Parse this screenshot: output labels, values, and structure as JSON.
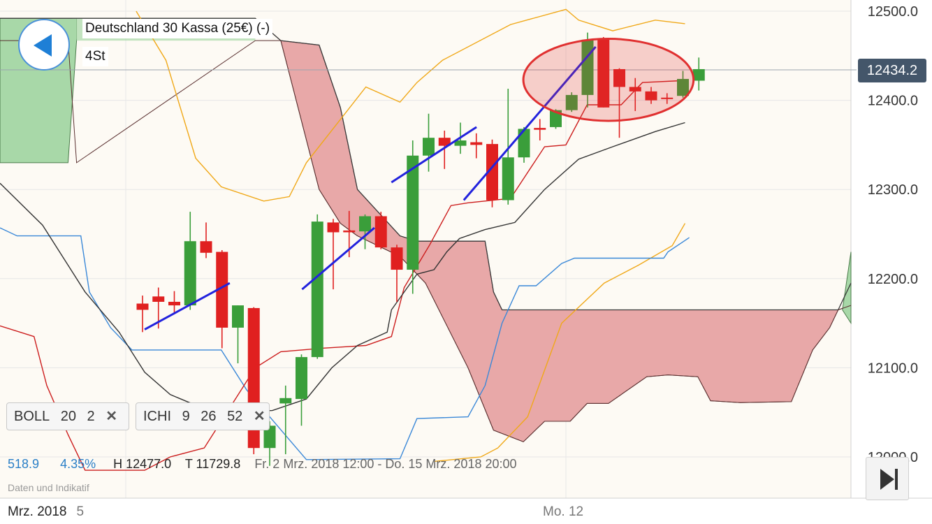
{
  "header": {
    "instrument": "Deutschland 30 Kassa (25€) (-)",
    "timeframe": "4St"
  },
  "price_tag": "12434.2",
  "indicators": [
    {
      "name": "BOLL",
      "p1": "20",
      "p2": "2",
      "close": "✕"
    },
    {
      "name": "ICHI",
      "p1": "9",
      "p2": "26",
      "p3": "52",
      "close": "✕"
    }
  ],
  "stats": {
    "range": "518.9",
    "pct": "4.35%",
    "high": "H 12477.0",
    "low": "T 11729.8",
    "period": "Fr. 2 Mrz. 2018 12:00 - Do. 15 Mrz. 2018 20:00"
  },
  "watermark": "Daten und Indikatif",
  "x_axis": {
    "left_label": "Mrz. 2018",
    "left_day": "5",
    "mid_label": "Mo. 12"
  },
  "colors": {
    "up": "#3a9e3a",
    "down": "#e02020",
    "bollinger": "#f0a818",
    "kijun": "#333333",
    "tenkan": "#cc1c1c",
    "chikou": "#3a88d8",
    "cloud_bear": "#e8a8a8",
    "cloud_bull": "#a8d8a8",
    "trendline": "#2222dd",
    "highlight": "#e03030"
  },
  "chart_data": {
    "type": "candlestick",
    "ylim": [
      11990,
      12510
    ],
    "y_ticks": [
      "12500.0",
      "12400.0",
      "12300.0",
      "12200.0",
      "12100.0",
      "12000.0"
    ],
    "last_price": 12434.2,
    "candles": [
      {
        "o": 12172,
        "h": 12181,
        "l": 12140,
        "c": 12165
      },
      {
        "o": 12180,
        "h": 12190,
        "l": 12144,
        "c": 12174
      },
      {
        "o": 12174,
        "h": 12186,
        "l": 12160,
        "c": 12170
      },
      {
        "o": 12170,
        "h": 12275,
        "l": 12165,
        "c": 12242
      },
      {
        "o": 12242,
        "h": 12263,
        "l": 12223,
        "c": 12229
      },
      {
        "o": 12230,
        "h": 12232,
        "l": 12122,
        "c": 12145
      },
      {
        "o": 12145,
        "h": 12170,
        "l": 12105,
        "c": 12170
      },
      {
        "o": 12167,
        "h": 12168,
        "l": 12003,
        "c": 12010
      },
      {
        "o": 12010,
        "h": 12040,
        "l": 11990,
        "c": 12035
      },
      {
        "o": 12060,
        "h": 12080,
        "l": 12003,
        "c": 12066
      },
      {
        "o": 12065,
        "h": 12115,
        "l": 12035,
        "c": 12112
      },
      {
        "o": 12112,
        "h": 12272,
        "l": 12110,
        "c": 12264
      },
      {
        "o": 12263,
        "h": 12267,
        "l": 12188,
        "c": 12252
      },
      {
        "o": 12254,
        "h": 12276,
        "l": 12224,
        "c": 12252
      },
      {
        "o": 12253,
        "h": 12272,
        "l": 12233,
        "c": 12270
      },
      {
        "o": 12270,
        "h": 12275,
        "l": 12233,
        "c": 12235
      },
      {
        "o": 12235,
        "h": 12238,
        "l": 12174,
        "c": 12210
      },
      {
        "o": 12210,
        "h": 12355,
        "l": 12183,
        "c": 12338
      },
      {
        "o": 12338,
        "h": 12385,
        "l": 12320,
        "c": 12358
      },
      {
        "o": 12358,
        "h": 12366,
        "l": 12323,
        "c": 12349
      },
      {
        "o": 12349,
        "h": 12375,
        "l": 12340,
        "c": 12355
      },
      {
        "o": 12353,
        "h": 12363,
        "l": 12335,
        "c": 12350
      },
      {
        "o": 12351,
        "h": 12356,
        "l": 12280,
        "c": 12288
      },
      {
        "o": 12288,
        "h": 12413,
        "l": 12283,
        "c": 12336
      },
      {
        "o": 12336,
        "h": 12370,
        "l": 12330,
        "c": 12368
      },
      {
        "o": 12369,
        "h": 12379,
        "l": 12355,
        "c": 12367
      },
      {
        "o": 12370,
        "h": 12390,
        "l": 12368,
        "c": 12389
      },
      {
        "o": 12389,
        "h": 12409,
        "l": 12387,
        "c": 12406
      },
      {
        "o": 12406,
        "h": 12476,
        "l": 12392,
        "c": 12468
      },
      {
        "o": 12468,
        "h": 12471,
        "l": 12392,
        "c": 12392
      },
      {
        "o": 12435,
        "h": 12436,
        "l": 12358,
        "c": 12415
      },
      {
        "o": 12415,
        "h": 12425,
        "l": 12388,
        "c": 12410
      },
      {
        "o": 12410,
        "h": 12415,
        "l": 12396,
        "c": 12400
      },
      {
        "o": 12403,
        "h": 12408,
        "l": 12396,
        "c": 12402
      },
      {
        "o": 12405,
        "h": 12433,
        "l": 12403,
        "c": 12424
      },
      {
        "o": 12422,
        "h": 12448,
        "l": 12411,
        "c": 12435
      }
    ],
    "bollinger_upper": [
      [
        0.16,
        12500
      ],
      [
        0.195,
        12445
      ],
      [
        0.23,
        12335
      ],
      [
        0.26,
        12303
      ],
      [
        0.31,
        12287
      ],
      [
        0.34,
        12292
      ],
      [
        0.36,
        12330
      ],
      [
        0.43,
        12415
      ],
      [
        0.47,
        12398
      ],
      [
        0.49,
        12420
      ],
      [
        0.52,
        12445
      ],
      [
        0.6,
        12485
      ],
      [
        0.665,
        12502
      ],
      [
        0.68,
        12490
      ],
      [
        0.72,
        12478
      ],
      [
        0.77,
        12490
      ],
      [
        0.805,
        12486
      ]
    ],
    "bollinger_lower": [
      [
        0.51,
        11995
      ],
      [
        0.565,
        12000
      ],
      [
        0.585,
        12010
      ],
      [
        0.62,
        12045
      ],
      [
        0.66,
        12150
      ],
      [
        0.71,
        12195
      ],
      [
        0.75,
        12215
      ],
      [
        0.79,
        12237
      ],
      [
        0.805,
        12262
      ]
    ],
    "kijun": [
      [
        0.0,
        12307
      ],
      [
        0.05,
        12260
      ],
      [
        0.1,
        12185
      ],
      [
        0.14,
        12140
      ],
      [
        0.17,
        12095
      ],
      [
        0.2,
        12070
      ],
      [
        0.25,
        12050
      ],
      [
        0.32,
        12052
      ],
      [
        0.36,
        12065
      ],
      [
        0.39,
        12100
      ],
      [
        0.42,
        12125
      ],
      [
        0.455,
        12140
      ],
      [
        0.46,
        12165
      ],
      [
        0.49,
        12205
      ],
      [
        0.51,
        12210
      ],
      [
        0.525,
        12230
      ],
      [
        0.54,
        12245
      ],
      [
        0.57,
        12255
      ],
      [
        0.605,
        12263
      ],
      [
        0.64,
        12300
      ],
      [
        0.68,
        12334
      ],
      [
        0.72,
        12348
      ],
      [
        0.77,
        12365
      ],
      [
        0.805,
        12375
      ]
    ],
    "tenkan": [
      [
        0.0,
        12147
      ],
      [
        0.04,
        12135
      ],
      [
        0.055,
        12080
      ],
      [
        0.08,
        12025
      ],
      [
        0.1,
        11985
      ],
      [
        0.17,
        11985
      ],
      [
        0.2,
        12000
      ],
      [
        0.24,
        12010
      ],
      [
        0.27,
        12055
      ],
      [
        0.3,
        12100
      ],
      [
        0.33,
        12118
      ],
      [
        0.38,
        12122
      ],
      [
        0.43,
        12125
      ],
      [
        0.46,
        12135
      ],
      [
        0.475,
        12190
      ],
      [
        0.505,
        12238
      ],
      [
        0.53,
        12282
      ],
      [
        0.55,
        12285
      ],
      [
        0.6,
        12290
      ],
      [
        0.64,
        12348
      ],
      [
        0.665,
        12350
      ],
      [
        0.69,
        12395
      ],
      [
        0.73,
        12395
      ],
      [
        0.755,
        12420
      ],
      [
        0.8,
        12422
      ]
    ],
    "chikou": [
      [
        0.0,
        12257
      ],
      [
        0.02,
        12248
      ],
      [
        0.095,
        12248
      ],
      [
        0.105,
        12185
      ],
      [
        0.13,
        12145
      ],
      [
        0.155,
        12120
      ],
      [
        0.26,
        12120
      ],
      [
        0.29,
        12075
      ],
      [
        0.36,
        11997
      ],
      [
        0.47,
        11998
      ],
      [
        0.49,
        12043
      ],
      [
        0.55,
        12045
      ],
      [
        0.57,
        12080
      ],
      [
        0.59,
        12150
      ],
      [
        0.61,
        12192
      ],
      [
        0.63,
        12192
      ],
      [
        0.66,
        12217
      ],
      [
        0.675,
        12223
      ],
      [
        0.78,
        12223
      ],
      [
        0.785,
        12230
      ],
      [
        0.81,
        12246
      ]
    ],
    "cloud_span_a": [
      [
        0.0,
        12492
      ],
      [
        0.09,
        12492
      ],
      [
        0.09,
        12492
      ],
      [
        0.3,
        12492
      ],
      [
        0.33,
        12467
      ],
      [
        0.375,
        12462
      ],
      [
        0.4,
        12392
      ],
      [
        0.42,
        12300
      ],
      [
        0.47,
        12248
      ],
      [
        0.49,
        12242
      ],
      [
        0.57,
        12242
      ],
      [
        0.58,
        12185
      ],
      [
        0.59,
        12165
      ],
      [
        0.975,
        12165
      ],
      [
        0.985,
        12165
      ],
      [
        1.0,
        12195
      ]
    ],
    "cloud_span_b": [
      [
        0.0,
        12467
      ],
      [
        0.08,
        12467
      ],
      [
        0.09,
        12330
      ],
      [
        0.3,
        12467
      ],
      [
        0.33,
        12467
      ],
      [
        0.375,
        12300
      ],
      [
        0.4,
        12262
      ],
      [
        0.42,
        12248
      ],
      [
        0.47,
        12225
      ],
      [
        0.5,
        12195
      ],
      [
        0.55,
        12100
      ],
      [
        0.58,
        12030
      ],
      [
        0.615,
        12017
      ],
      [
        0.64,
        12040
      ],
      [
        0.67,
        12040
      ],
      [
        0.69,
        12060
      ],
      [
        0.715,
        12060
      ],
      [
        0.76,
        12090
      ],
      [
        0.785,
        12092
      ],
      [
        0.82,
        12090
      ],
      [
        0.835,
        12063
      ],
      [
        0.87,
        12061
      ],
      [
        0.93,
        12062
      ],
      [
        0.955,
        12120
      ],
      [
        0.975,
        12145
      ],
      [
        0.985,
        12165
      ],
      [
        1.0,
        12170
      ]
    ],
    "trendlines": [
      [
        [
          0.17,
          12143
        ],
        [
          0.27,
          12195
        ]
      ],
      [
        [
          0.355,
          12188
        ],
        [
          0.44,
          12257
        ]
      ],
      [
        [
          0.46,
          12308
        ],
        [
          0.56,
          12370
        ]
      ],
      [
        [
          0.545,
          12288
        ],
        [
          0.7,
          12460
        ]
      ]
    ],
    "highlight_ellipse": {
      "x_center": 0.715,
      "y_center": 12423,
      "x_radius": 0.1,
      "y_radius": 46
    }
  }
}
